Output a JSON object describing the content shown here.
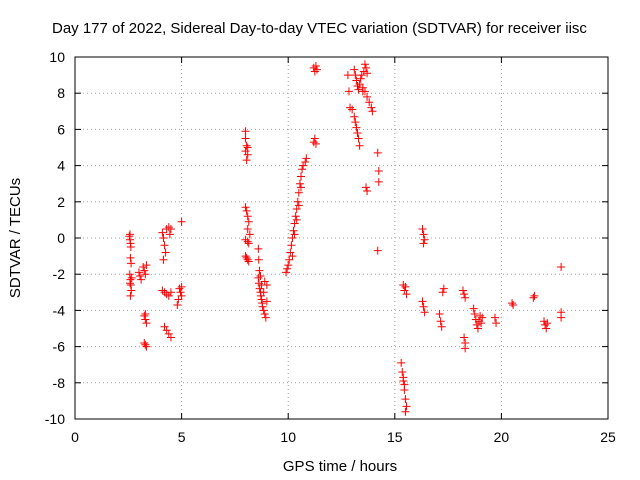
{
  "chart_data": {
    "type": "scatter",
    "title": "Day 177 of 2022, Sidereal Day-to-day VTEC variation (SDTVAR) for receiver iisc",
    "xlabel": "GPS time / hours",
    "ylabel": "SDTVAR / TECUs",
    "xlim": [
      0,
      25
    ],
    "ylim": [
      -10,
      10
    ],
    "xticks": [
      0,
      5,
      10,
      15,
      20,
      25
    ],
    "yticks": [
      -10,
      -8,
      -6,
      -4,
      -2,
      0,
      2,
      4,
      6,
      8,
      10
    ],
    "grid": true,
    "marker": "+",
    "color": "#ff0000",
    "series": [
      {
        "name": "SDTVAR",
        "points": [
          [
            2.55,
            0.1
          ],
          [
            2.58,
            -0.1
          ],
          [
            2.6,
            -0.3
          ],
          [
            2.62,
            -0.5
          ],
          [
            2.58,
            0.2
          ],
          [
            2.6,
            -1.1
          ],
          [
            2.63,
            -1.4
          ],
          [
            2.57,
            -2.0
          ],
          [
            2.6,
            -2.3
          ],
          [
            2.62,
            -2.6
          ],
          [
            2.64,
            -2.9
          ],
          [
            2.6,
            -3.2
          ],
          [
            2.66,
            -2.2
          ],
          [
            2.58,
            -2.5
          ],
          [
            3.0,
            -1.9
          ],
          [
            3.05,
            -2.1
          ],
          [
            3.1,
            -2.3
          ],
          [
            3.2,
            -1.6
          ],
          [
            3.25,
            -1.8
          ],
          [
            3.3,
            -2.0
          ],
          [
            3.35,
            -1.5
          ],
          [
            3.25,
            -4.3
          ],
          [
            3.3,
            -4.5
          ],
          [
            3.35,
            -4.7
          ],
          [
            3.3,
            -4.2
          ],
          [
            3.25,
            -5.8
          ],
          [
            3.3,
            -5.9
          ],
          [
            3.35,
            -6.0
          ],
          [
            4.1,
            0.3
          ],
          [
            4.15,
            0.0
          ],
          [
            4.2,
            -0.4
          ],
          [
            4.25,
            -0.8
          ],
          [
            4.15,
            -1.2
          ],
          [
            4.3,
            0.5
          ],
          [
            4.4,
            0.6
          ],
          [
            4.5,
            0.5
          ],
          [
            4.45,
            0.2
          ],
          [
            4.1,
            -2.9
          ],
          [
            4.2,
            -3.0
          ],
          [
            4.3,
            -3.1
          ],
          [
            4.4,
            -3.2
          ],
          [
            4.5,
            -3.0
          ],
          [
            4.2,
            -4.9
          ],
          [
            4.3,
            -5.1
          ],
          [
            4.4,
            -5.3
          ],
          [
            4.5,
            -5.5
          ],
          [
            4.9,
            -2.8
          ],
          [
            4.95,
            -3.0
          ],
          [
            5.0,
            -3.2
          ],
          [
            5.0,
            -2.7
          ],
          [
            4.85,
            -3.4
          ],
          [
            4.8,
            -3.7
          ],
          [
            5.0,
            0.9
          ],
          [
            8.0,
            5.9
          ],
          [
            8.0,
            5.5
          ],
          [
            8.05,
            5.1
          ],
          [
            8.0,
            4.8
          ],
          [
            8.1,
            4.6
          ],
          [
            8.05,
            4.3
          ],
          [
            8.1,
            5.0
          ],
          [
            8.0,
            1.7
          ],
          [
            8.05,
            1.5
          ],
          [
            8.1,
            1.2
          ],
          [
            8.15,
            0.9
          ],
          [
            8.1,
            0.5
          ],
          [
            8.2,
            0.2
          ],
          [
            8.0,
            -0.1
          ],
          [
            8.1,
            -0.2
          ],
          [
            8.15,
            -0.3
          ],
          [
            8.0,
            -1.0
          ],
          [
            8.05,
            -1.1
          ],
          [
            8.1,
            -1.2
          ],
          [
            8.15,
            -1.3
          ],
          [
            8.6,
            -0.6
          ],
          [
            8.62,
            -1.2
          ],
          [
            8.65,
            -1.8
          ],
          [
            8.6,
            -2.2
          ],
          [
            8.63,
            -2.5
          ],
          [
            8.66,
            -2.8
          ],
          [
            8.7,
            -3.0
          ],
          [
            8.72,
            -3.2
          ],
          [
            8.75,
            -3.4
          ],
          [
            8.78,
            -3.6
          ],
          [
            8.8,
            -3.8
          ],
          [
            8.85,
            -4.0
          ],
          [
            8.9,
            -4.2
          ],
          [
            8.95,
            -4.4
          ],
          [
            8.85,
            -3.0
          ],
          [
            8.9,
            -2.4
          ],
          [
            9.0,
            -2.6
          ],
          [
            9.0,
            -3.5
          ],
          [
            8.7,
            -2.1
          ],
          [
            8.75,
            -2.6
          ],
          [
            9.9,
            -1.9
          ],
          [
            9.95,
            -1.7
          ],
          [
            10.0,
            -1.5
          ],
          [
            10.05,
            -1.2
          ],
          [
            10.1,
            -0.8
          ],
          [
            10.15,
            -0.4
          ],
          [
            10.2,
            0.0
          ],
          [
            10.25,
            0.4
          ],
          [
            10.3,
            0.8
          ],
          [
            10.35,
            1.2
          ],
          [
            10.4,
            1.6
          ],
          [
            10.45,
            2.0
          ],
          [
            10.5,
            2.5
          ],
          [
            10.55,
            3.0
          ],
          [
            10.6,
            3.4
          ],
          [
            10.65,
            3.8
          ],
          [
            10.7,
            4.0
          ],
          [
            10.8,
            4.2
          ],
          [
            10.85,
            4.4
          ],
          [
            10.2,
            -1.0
          ],
          [
            10.3,
            0.2
          ],
          [
            10.4,
            1.0
          ],
          [
            10.5,
            1.8
          ],
          [
            10.6,
            2.8
          ],
          [
            11.2,
            5.3
          ],
          [
            11.25,
            5.5
          ],
          [
            11.3,
            5.2
          ],
          [
            11.2,
            9.4
          ],
          [
            11.25,
            9.2
          ],
          [
            11.3,
            9.5
          ],
          [
            11.35,
            9.3
          ],
          [
            12.8,
            9.0
          ],
          [
            12.9,
            7.2
          ],
          [
            13.0,
            7.1
          ],
          [
            12.85,
            8.1
          ],
          [
            13.1,
            9.3
          ],
          [
            13.15,
            9.0
          ],
          [
            13.2,
            8.7
          ],
          [
            13.25,
            8.4
          ],
          [
            13.3,
            8.2
          ],
          [
            13.35,
            8.5
          ],
          [
            13.4,
            8.8
          ],
          [
            13.45,
            9.0
          ],
          [
            13.5,
            8.3
          ],
          [
            13.55,
            9.2
          ],
          [
            13.6,
            9.6
          ],
          [
            13.65,
            9.4
          ],
          [
            13.7,
            9.1
          ],
          [
            13.5,
            8.1
          ],
          [
            13.1,
            6.7
          ],
          [
            13.15,
            6.4
          ],
          [
            13.2,
            6.1
          ],
          [
            13.25,
            5.8
          ],
          [
            13.3,
            5.5
          ],
          [
            13.35,
            5.1
          ],
          [
            13.6,
            8.1
          ],
          [
            13.7,
            7.8
          ],
          [
            13.8,
            7.5
          ],
          [
            13.9,
            7.2
          ],
          [
            13.95,
            7.0
          ],
          [
            13.65,
            2.8
          ],
          [
            13.7,
            2.6
          ],
          [
            14.2,
            4.7
          ],
          [
            14.25,
            3.7
          ],
          [
            14.25,
            3.1
          ],
          [
            14.2,
            -0.7
          ],
          [
            15.3,
            -6.9
          ],
          [
            15.35,
            -7.4
          ],
          [
            15.4,
            -7.9
          ],
          [
            15.45,
            -8.4
          ],
          [
            15.5,
            -8.9
          ],
          [
            15.55,
            -9.3
          ],
          [
            15.5,
            -9.6
          ],
          [
            15.45,
            -8.1
          ],
          [
            15.4,
            -7.7
          ],
          [
            15.4,
            -2.6
          ],
          [
            15.45,
            -2.9
          ],
          [
            15.5,
            -2.7
          ],
          [
            15.55,
            -3.1
          ],
          [
            16.3,
            0.5
          ],
          [
            16.35,
            0.2
          ],
          [
            16.4,
            -0.1
          ],
          [
            16.35,
            -0.3
          ],
          [
            16.3,
            -3.5
          ],
          [
            16.35,
            -3.8
          ],
          [
            16.4,
            -4.1
          ],
          [
            17.1,
            -4.2
          ],
          [
            17.15,
            -4.6
          ],
          [
            17.2,
            -4.9
          ],
          [
            17.25,
            -3.0
          ],
          [
            17.3,
            -2.8
          ],
          [
            18.2,
            -2.9
          ],
          [
            18.25,
            -3.1
          ],
          [
            18.3,
            -3.3
          ],
          [
            18.25,
            -5.5
          ],
          [
            18.3,
            -5.8
          ],
          [
            18.3,
            -6.1
          ],
          [
            18.7,
            -3.9
          ],
          [
            18.75,
            -4.2
          ],
          [
            18.8,
            -4.5
          ],
          [
            18.85,
            -4.8
          ],
          [
            18.9,
            -5.0
          ],
          [
            18.95,
            -4.6
          ],
          [
            19.0,
            -4.3
          ],
          [
            19.05,
            -4.7
          ],
          [
            19.1,
            -4.4
          ],
          [
            19.7,
            -4.4
          ],
          [
            19.75,
            -4.7
          ],
          [
            20.5,
            -3.6
          ],
          [
            20.55,
            -3.7
          ],
          [
            21.5,
            -3.3
          ],
          [
            21.55,
            -3.2
          ],
          [
            22.0,
            -4.6
          ],
          [
            22.05,
            -4.8
          ],
          [
            22.1,
            -5.0
          ],
          [
            22.15,
            -4.7
          ],
          [
            22.8,
            -1.6
          ],
          [
            22.8,
            -4.1
          ],
          [
            22.8,
            -4.4
          ]
        ]
      }
    ]
  }
}
